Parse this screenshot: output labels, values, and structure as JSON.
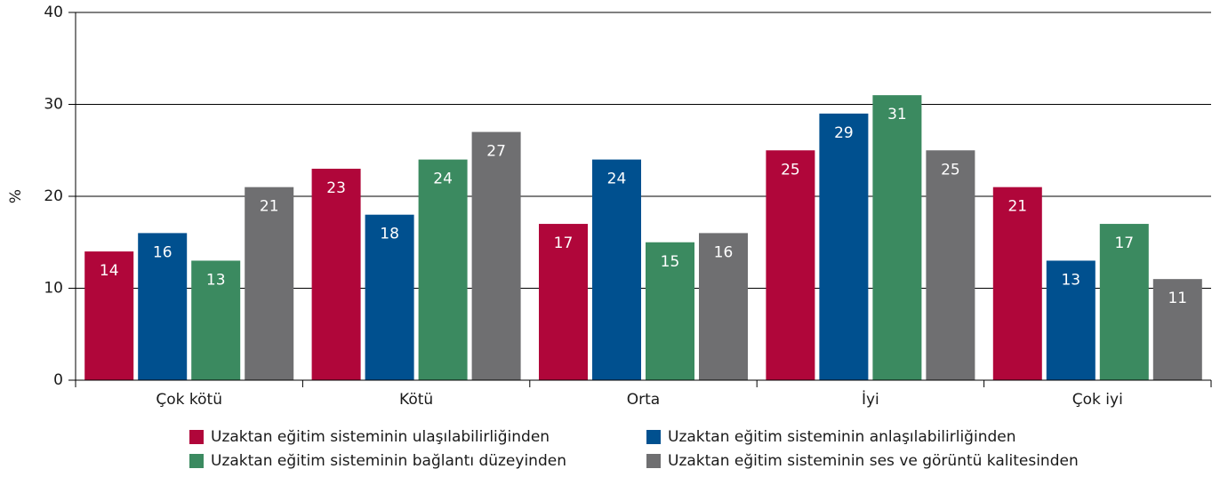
{
  "chart_data": {
    "type": "bar",
    "y_label": "%",
    "categories": [
      "Çok kötü",
      "Kötü",
      "Orta",
      "İyi",
      "Çok iyi"
    ],
    "series": [
      {
        "name": "Uzaktan eğitim sisteminin ulaşılabilirliğinden",
        "color": "#b0063a",
        "values": [
          14,
          23,
          17,
          25,
          21
        ]
      },
      {
        "name": "Uzaktan eğitim sisteminin anlaşılabilirliğinden",
        "color": "#00508f",
        "values": [
          16,
          18,
          24,
          29,
          13
        ]
      },
      {
        "name": "Uzaktan eğitim sisteminin bağlantı düzeyinden",
        "color": "#3b8a60",
        "values": [
          13,
          24,
          15,
          31,
          17
        ]
      },
      {
        "name": "Uzaktan eğitim sisteminin ses ve görüntü kalitesinden",
        "color": "#6f6f71",
        "values": [
          21,
          27,
          16,
          25,
          11
        ]
      }
    ],
    "ylim": [
      0,
      40
    ],
    "yticks": [
      0,
      10,
      20,
      30,
      40
    ],
    "grid": true
  }
}
